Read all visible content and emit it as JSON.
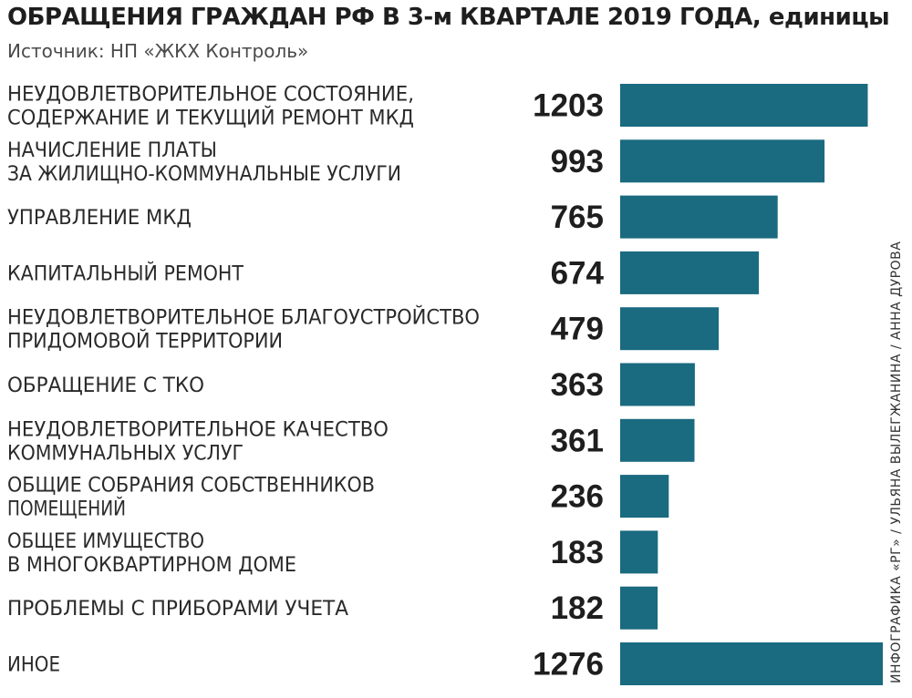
{
  "title": "ОБРАЩЕНИЯ ГРАЖДАН РФ В 3-м КВАРТАЛЕ 2019 ГОДА, единицы",
  "source": "Источник: НП «ЖКХ Контроль»",
  "credit": "ИНФОГРАФИКА «РГ» / УЛЬЯНА ВЫЛЕГЖАНИНА / АННА ДУРОВА",
  "colors": {
    "bar": "#1a6a80",
    "text": "#2a2a2a",
    "value": "#1e1e1e"
  },
  "chart_data": {
    "type": "bar",
    "orientation": "horizontal",
    "categories": [
      [
        "НЕУДОВЛЕТВОРИТЕЛЬНОЕ СОСТОЯНИЕ,",
        "СОДЕРЖАНИЕ И ТЕКУЩИЙ РЕМОНТ МКД"
      ],
      [
        "НАЧИСЛЕНИЕ ПЛАТЫ",
        "ЗА ЖИЛИЩНО-КОММУНАЛЬНЫЕ УСЛУГИ"
      ],
      [
        "УПРАВЛЕНИЕ МКД"
      ],
      [
        "КАПИТАЛЬНЫЙ РЕМОНТ"
      ],
      [
        "НЕУДОВЛЕТВОРИТЕЛЬНОЕ БЛАГОУСТРОЙСТВО",
        "ПРИДОМОВОЙ ТЕРРИТОРИИ"
      ],
      [
        "ОБРАЩЕНИЕ С ТКО"
      ],
      [
        "НЕУДОВЛЕТВОРИТЕЛЬНОЕ КАЧЕСТВО",
        "КОММУНАЛЬНЫХ УСЛУГ"
      ],
      [
        "ОБЩИЕ СОБРАНИЯ СОБСТВЕННИКОВ",
        "ПОМЕЩЕНИЙ"
      ],
      [
        "ОБЩЕЕ ИМУЩЕСТВО",
        "В МНОГОКВАРТИРНОМ ДОМЕ"
      ],
      [
        "ПРОБЛЕМЫ С ПРИБОРАМИ УЧЕТА"
      ],
      [
        "ИНОЕ"
      ]
    ],
    "values": [
      1203,
      993,
      765,
      674,
      479,
      363,
      361,
      236,
      183,
      182,
      1276
    ],
    "value_labels": [
      "1203",
      "993",
      "765",
      "674",
      "479",
      "363",
      "361",
      "236",
      "183",
      "182",
      "1276"
    ],
    "xlim": [
      0,
      1276
    ],
    "grid": false,
    "legend": "none"
  }
}
